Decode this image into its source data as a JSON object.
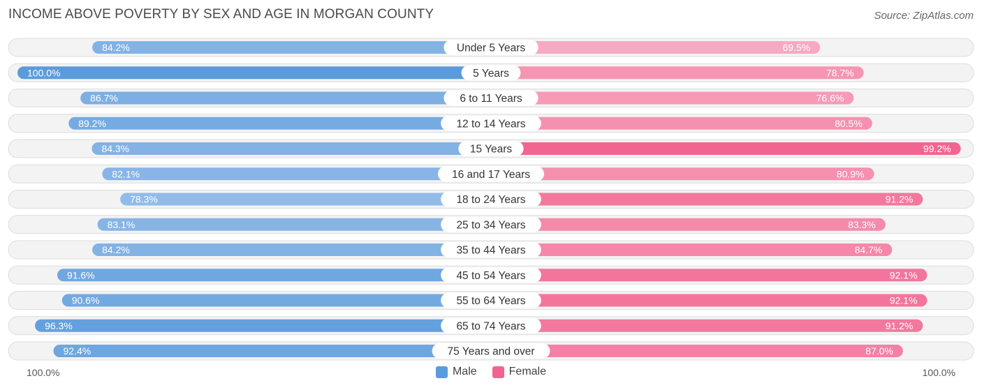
{
  "header": {
    "title": "INCOME ABOVE POVERTY BY SEX AND AGE IN MORGAN COUNTY",
    "source": "Source: ZipAtlas.com"
  },
  "axis": {
    "left_label": "100.0%",
    "right_label": "100.0%"
  },
  "legend": {
    "male_label": "Male",
    "female_label": "Female"
  },
  "colors": {
    "male_dark": "#5b9bdc",
    "male_light": "#a7c7ec",
    "female_dark": "#f2638f",
    "female_light": "#f7a9c1"
  },
  "chart_data": {
    "type": "bar",
    "orientation": "diverging-horizontal",
    "title": "INCOME ABOVE POVERTY BY SEX AND AGE IN MORGAN COUNTY",
    "xlim": [
      0,
      100
    ],
    "categories": [
      "Under 5 Years",
      "5 Years",
      "6 to 11 Years",
      "12 to 14 Years",
      "15 Years",
      "16 and 17 Years",
      "18 to 24 Years",
      "25 to 34 Years",
      "35 to 44 Years",
      "45 to 54 Years",
      "55 to 64 Years",
      "65 to 74 Years",
      "75 Years and over"
    ],
    "series": [
      {
        "name": "Male",
        "values": [
          84.2,
          100.0,
          86.7,
          89.2,
          84.3,
          82.1,
          78.3,
          83.1,
          84.2,
          91.6,
          90.6,
          96.3,
          92.4
        ],
        "labels": [
          "84.2%",
          "100.0%",
          "86.7%",
          "89.2%",
          "84.3%",
          "82.1%",
          "78.3%",
          "83.1%",
          "84.2%",
          "91.6%",
          "90.6%",
          "96.3%",
          "92.4%"
        ]
      },
      {
        "name": "Female",
        "values": [
          69.5,
          78.7,
          76.6,
          80.5,
          99.2,
          80.9,
          91.2,
          83.3,
          84.7,
          92.1,
          92.1,
          91.2,
          87.0
        ],
        "labels": [
          "69.5%",
          "78.7%",
          "76.6%",
          "80.5%",
          "99.2%",
          "80.9%",
          "91.2%",
          "83.3%",
          "84.7%",
          "92.1%",
          "92.1%",
          "91.2%",
          "87.0%"
        ]
      }
    ]
  }
}
